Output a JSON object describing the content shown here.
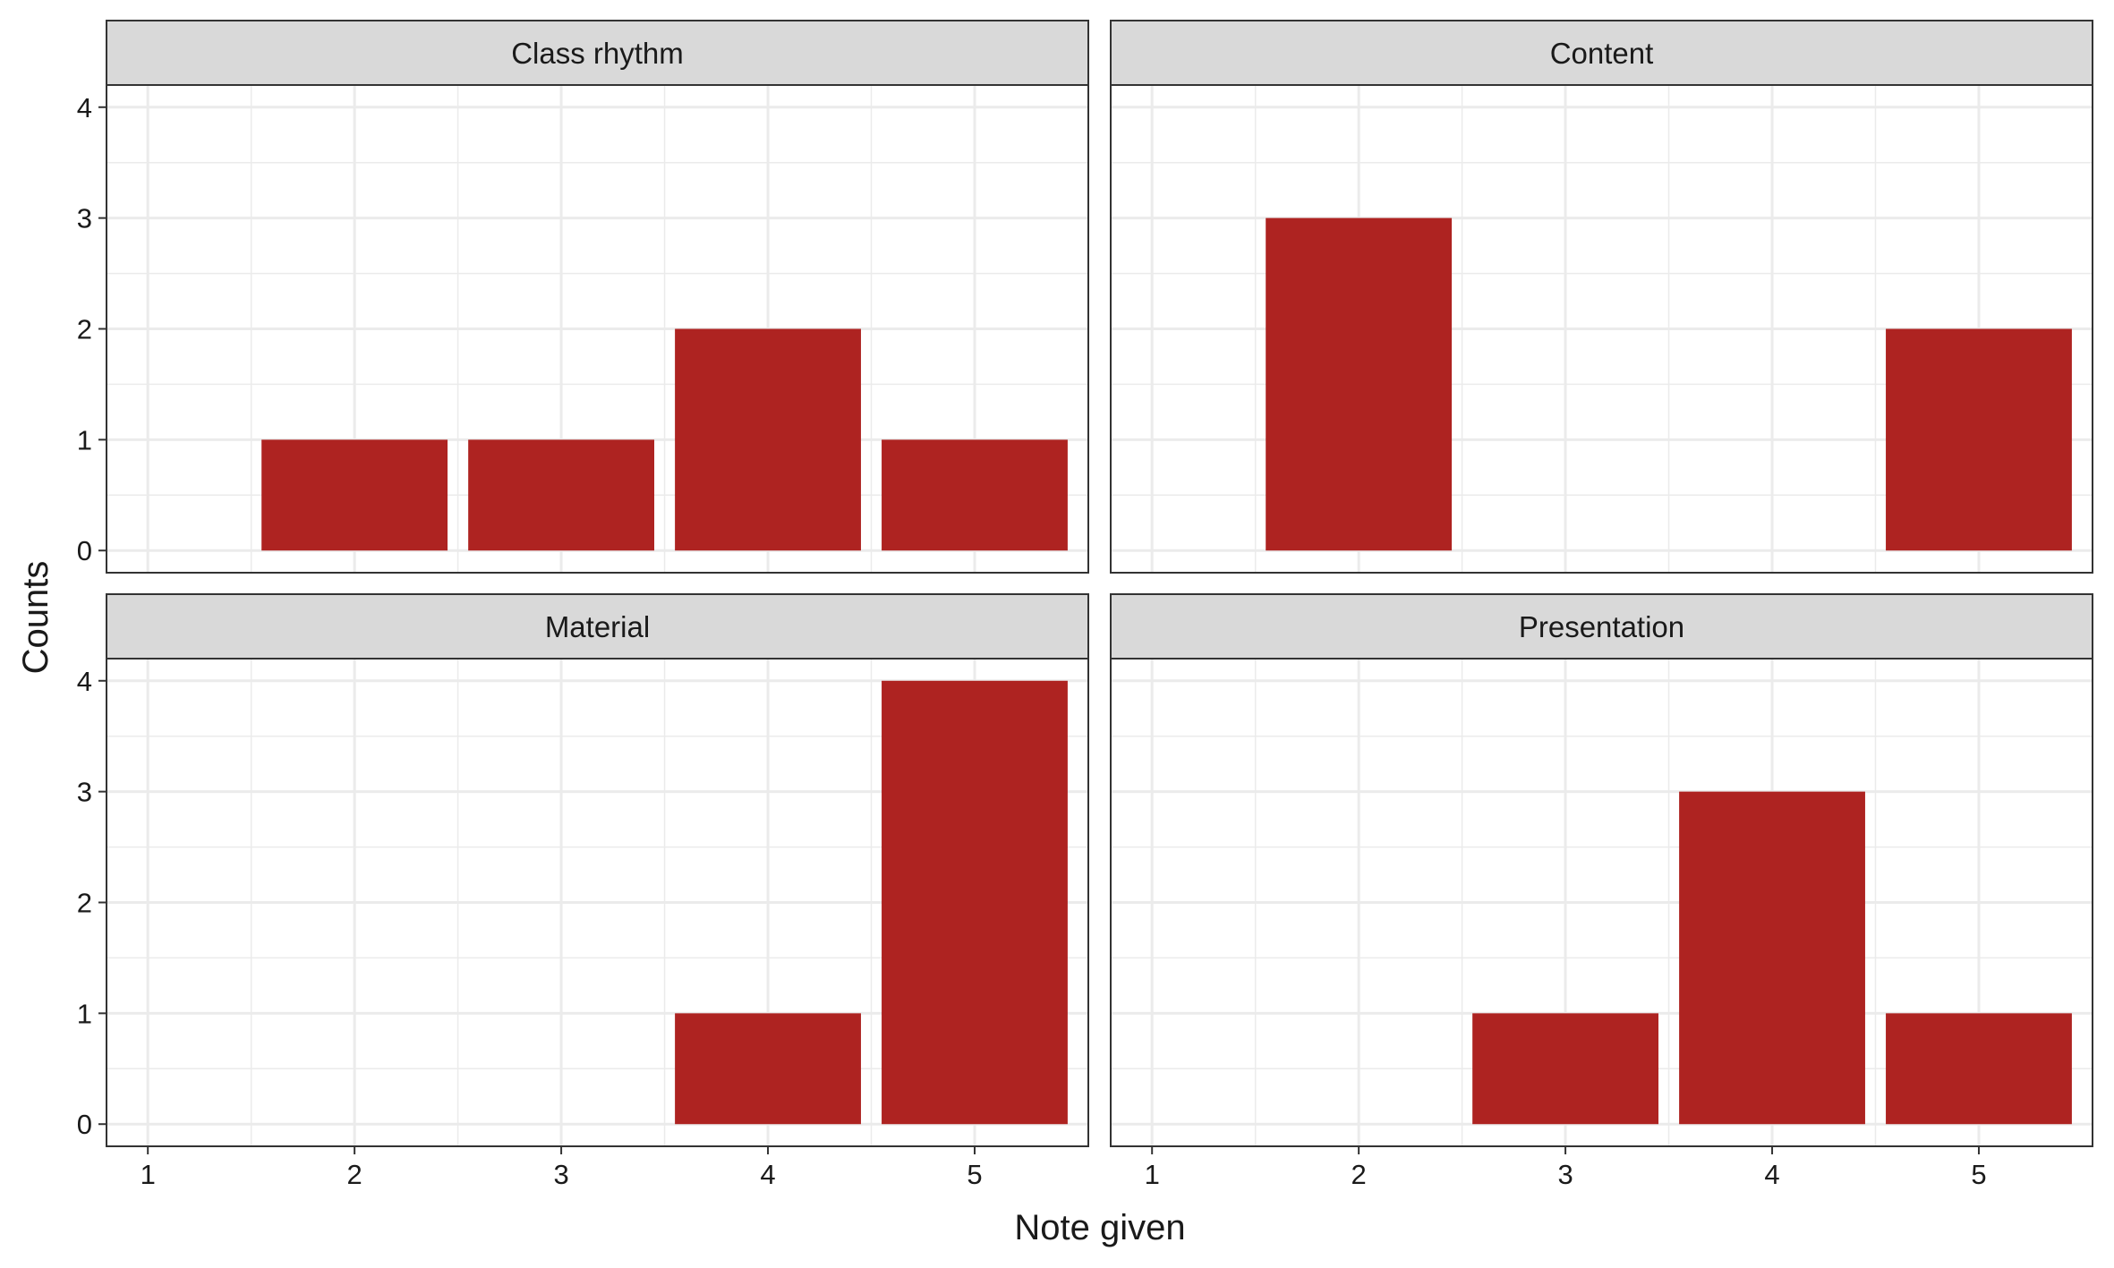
{
  "chart_data": {
    "type": "bar",
    "xlabel": "Note given",
    "ylabel": "Counts",
    "x_ticks": [
      1,
      2,
      3,
      4,
      5
    ],
    "y_ticks": [
      0,
      1,
      2,
      3,
      4
    ],
    "xlim": [
      0.8,
      5.55
    ],
    "ylim": [
      -0.2,
      4.2
    ],
    "bar_color": "#AE2321",
    "grid": true,
    "facets": [
      {
        "title": "Class rhythm",
        "x": [
          1,
          2,
          3,
          4,
          5
        ],
        "values": [
          0,
          1,
          1,
          2,
          1
        ]
      },
      {
        "title": "Content",
        "x": [
          1,
          2,
          3,
          4,
          5
        ],
        "values": [
          0,
          3,
          0,
          0,
          2
        ]
      },
      {
        "title": "Material",
        "x": [
          1,
          2,
          3,
          4,
          5
        ],
        "values": [
          0,
          0,
          0,
          1,
          4
        ]
      },
      {
        "title": "Presentation",
        "x": [
          1,
          2,
          3,
          4,
          5
        ],
        "values": [
          0,
          0,
          1,
          3,
          1
        ]
      }
    ]
  }
}
